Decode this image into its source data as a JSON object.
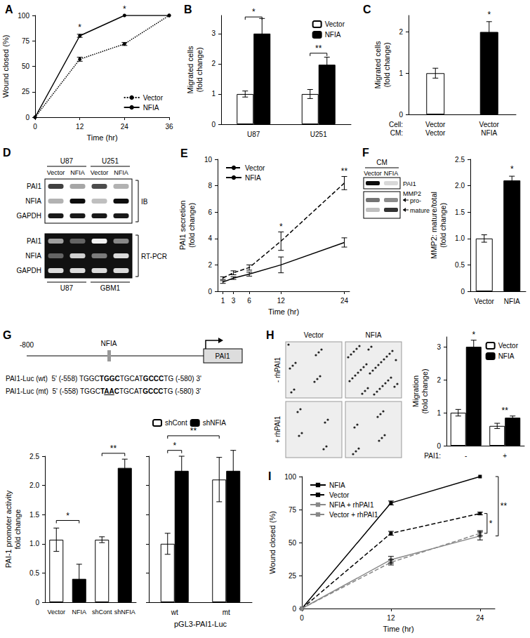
{
  "chart_data": [
    {
      "panel": "A",
      "type": "line",
      "x_label": "Time (hr)",
      "y_label": "Wound closed (%)",
      "x": [
        0,
        12,
        24,
        36
      ],
      "xlim": [
        0,
        36
      ],
      "xticks": [
        0,
        12,
        24,
        36
      ],
      "ylim": [
        0,
        100
      ],
      "yticks": [
        0,
        25,
        50,
        75,
        100
      ],
      "grid": false,
      "legend": "lower right",
      "series": [
        {
          "name": "Vector",
          "color": "#000000",
          "line_style": "dotted",
          "marker": "circle",
          "values": [
            0,
            57,
            72,
            100
          ],
          "error": [
            0,
            2,
            1.5,
            0
          ]
        },
        {
          "name": "NFIA",
          "color": "#000000",
          "line_style": "solid",
          "marker": "circle",
          "values": [
            0,
            80,
            100,
            100
          ],
          "error": [
            0,
            1.5,
            0,
            0
          ]
        }
      ],
      "annotations": [
        {
          "x": 12,
          "y": 84,
          "text": "*"
        },
        {
          "x": 24,
          "y": 102,
          "text": "*"
        }
      ]
    },
    {
      "panel": "B",
      "type": "bar",
      "y_label": "Migrated cells\n(fold change)",
      "categories": [
        "U87",
        "U251"
      ],
      "ylim": [
        0,
        3.6
      ],
      "yticks": [
        0,
        1,
        2,
        3
      ],
      "grid": false,
      "legend": "upper right",
      "series": [
        {
          "name": "Vector",
          "color": "#ffffff",
          "values": [
            1,
            1
          ],
          "error": [
            0.1,
            0.15
          ]
        },
        {
          "name": "NFIA",
          "color": "#000000",
          "values": [
            3,
            1.97
          ],
          "error": [
            0.5,
            0.25
          ]
        }
      ],
      "annotations": [
        {
          "from": [
            "U87",
            "Vector"
          ],
          "to": [
            "U87",
            "NFIA"
          ],
          "y": 3.55,
          "text": "*"
        },
        {
          "from": [
            "U251",
            "Vector"
          ],
          "to": [
            "U251",
            "NFIA"
          ],
          "y": 2.35,
          "text": "**"
        }
      ]
    },
    {
      "panel": "C",
      "type": "bar",
      "y_label": "Migrated cells\n(fold change)",
      "categories": [
        "Vector\nVector",
        "Vector\nNFIA"
      ],
      "category_rows": [
        "Cell:",
        "CM:"
      ],
      "ylim": [
        0,
        2.4
      ],
      "yticks": [
        0,
        1,
        2
      ],
      "grid": false,
      "values": [
        1,
        2
      ],
      "error": [
        0.12,
        0.25
      ],
      "colors": [
        "#ffffff",
        "#000000"
      ],
      "annotations": [
        {
          "x": [
            "Vector\nNFIA"
          ],
          "y": 2.3,
          "text": "*"
        }
      ]
    },
    {
      "panel": "E",
      "type": "line",
      "x_label": "Time (hr)",
      "y_label": "PAI1 secretion\n(fold change)",
      "x": [
        1,
        3,
        6,
        12,
        24
      ],
      "xlim": [
        0,
        25
      ],
      "xticks": [
        1,
        3,
        6,
        12,
        24
      ],
      "ylim": [
        0,
        10
      ],
      "yticks": [
        0,
        2,
        4,
        6,
        8,
        10
      ],
      "grid": false,
      "legend": "upper left",
      "series": [
        {
          "name": "Vector",
          "color": "#000000",
          "line_style": "dashed",
          "marker": "none",
          "values": [
            1,
            1.4,
            1.8,
            3.8,
            8.2
          ],
          "error": [
            0.1,
            0.15,
            0.2,
            0.7,
            0.5
          ]
        },
        {
          "name": "NFIA",
          "color": "#000000",
          "line_style": "solid",
          "marker": "none",
          "values": [
            0.7,
            1,
            1.3,
            2,
            3.7
          ],
          "error": [
            0.1,
            0.1,
            0.15,
            0.6,
            0.35
          ]
        }
      ],
      "annotations": [
        {
          "x": 12,
          "y": 4.6,
          "text": "*"
        },
        {
          "x": 24,
          "y": 8.8,
          "text": "**"
        }
      ]
    },
    {
      "type": "bar",
      "y_label": "MMP2: mature/total\n(fold change)",
      "categories": [
        "Vector",
        "NFIA"
      ],
      "ylim": [
        0,
        2.5
      ],
      "yticks": [
        0,
        0.5,
        {
          "value": 1,
          "label": "1.0"
        },
        1.5,
        {
          "value": 2,
          "label": "2.0"
        },
        2.5
      ],
      "grid": false,
      "values": [
        1,
        2.1
      ],
      "error": [
        0.07,
        0.08
      ],
      "colors": [
        "#ffffff",
        "#000000"
      ],
      "annotations": [
        {
          "x": [
            "NFIA"
          ],
          "y": 2.22,
          "text": "*"
        }
      ]
    },
    {
      "type": "bar",
      "y_label": "PAI-1 promoter activity\nfold change",
      "categories": [
        "Vector",
        "NFIA",
        "shCont",
        "shNFIA"
      ],
      "ylim": [
        0,
        2.5
      ],
      "yticks": [
        0,
        0.5,
        {
          "value": 1,
          "label": "1.0"
        },
        1.5,
        {
          "value": 2,
          "label": "2.0"
        },
        2.5
      ],
      "grid": false,
      "values": [
        1.07,
        0.4,
        1.07,
        2.3
      ],
      "error": [
        0.2,
        0.25,
        0.05,
        0.15
      ],
      "colors": [
        "#ffffff",
        "#000000",
        "#ffffff",
        "#000000"
      ],
      "annotations": [
        {
          "from": [
            "Vector"
          ],
          "to": [
            "NFIA"
          ],
          "y": 1.4,
          "text": "*"
        },
        {
          "from": [
            "shCont"
          ],
          "to": [
            "shNFIA"
          ],
          "y": 2.55,
          "text": "**"
        }
      ]
    },
    {
      "type": "bar",
      "x_label": "pGL3-PAI1-Luc",
      "categories": [
        "wt",
        "mt"
      ],
      "ylim": [
        0,
        2.5
      ],
      "yticks": [
        0,
        0.5,
        {
          "value": 1,
          "label": "1.0"
        },
        1.5,
        {
          "value": 2,
          "label": "2.0"
        },
        2.5
      ],
      "tick_labels": "x",
      "grid": false,
      "legend": "upper left",
      "series": [
        {
          "name": "shCont",
          "color": "#ffffff",
          "values": [
            1,
            2.1
          ],
          "error": [
            0.18,
            0.38
          ]
        },
        {
          "name": "shNFIA",
          "color": "#000000",
          "values": [
            2.25,
            2.25
          ],
          "error": [
            0.25,
            0.35
          ]
        }
      ],
      "annotations": [
        {
          "from": [
            "wt",
            "shCont"
          ],
          "to": [
            "wt",
            "shNFIA"
          ],
          "y": 2.6,
          "text": "*"
        },
        {
          "from": [
            "wt",
            "shCont"
          ],
          "to": [
            "mt",
            "shCont"
          ],
          "y": 2.85,
          "text": "**"
        }
      ]
    },
    {
      "type": "bar",
      "y_label": "Migration\n(fold change)",
      "categories": [
        "-",
        "+"
      ],
      "category_rows": [
        "PAI1:"
      ],
      "ylim": [
        0,
        3.3
      ],
      "yticks": [
        0,
        1,
        2,
        3
      ],
      "grid": false,
      "legend": "upper right",
      "series": [
        {
          "name": "Vector",
          "color": "#ffffff",
          "values": [
            1,
            0.6
          ],
          "error": [
            0.1,
            0.08
          ]
        },
        {
          "name": "NFIA",
          "color": "#000000",
          "values": [
            3,
            0.85
          ],
          "error": [
            0.2,
            0.05
          ]
        }
      ],
      "annotations": [
        {
          "x": [
            "-",
            "NFIA"
          ],
          "y": 3.22,
          "text": "*"
        },
        {
          "x": [
            "+"
          ],
          "y": 0.92,
          "text": "**"
        }
      ]
    },
    {
      "panel": "I",
      "type": "line",
      "x_label": "Time (hr)",
      "y_label": "Wound closed (%)",
      "x": [
        0,
        12,
        24
      ],
      "xlim": [
        0,
        26
      ],
      "xticks": [
        0,
        12,
        24
      ],
      "ylim": [
        0,
        100
      ],
      "yticks": [
        0,
        25,
        50,
        75,
        100
      ],
      "grid": false,
      "legend": "upper left",
      "series": [
        {
          "name": "NFIA",
          "color": "#000000",
          "line_style": "solid",
          "marker": "square",
          "values": [
            0,
            80,
            100
          ],
          "error": [
            0,
            1.5,
            0
          ]
        },
        {
          "name": "Vector",
          "color": "#000000",
          "line_style": "dashed",
          "marker": "square",
          "values": [
            0,
            57,
            72
          ],
          "error": [
            0,
            1.5,
            1
          ]
        },
        {
          "name": "NFIA + rhPAI1",
          "color": "#888888",
          "line_style": "solid",
          "marker": "square",
          "values": [
            0,
            37,
            55
          ],
          "error": [
            0,
            2.5,
            3
          ]
        },
        {
          "name": "Vector + rhPAI1",
          "color": "#888888",
          "line_style": "dashed",
          "marker": "square",
          "values": [
            0,
            35,
            57
          ],
          "error": [
            0,
            2,
            2
          ]
        }
      ],
      "annotations": [
        {
          "x": 24,
          "y_range": [
            57,
            72
          ],
          "text": "*"
        },
        {
          "x": 24,
          "y_range": [
            55,
            100
          ],
          "text": "**"
        }
      ]
    }
  ],
  "blot_D": {
    "panel": "D",
    "groups": [
      "U87",
      "U251"
    ],
    "lanes": [
      "Vector",
      "NFIA",
      "Vector",
      "NFIA"
    ],
    "method": "IB",
    "rows": [
      {
        "name": "PAI1",
        "bands": [
          0.75,
          0.35,
          0.7,
          0.3
        ]
      },
      {
        "name": "NFIA",
        "bands": [
          0.3,
          0.95,
          0.25,
          0.95
        ]
      },
      {
        "name": "GAPDH",
        "bands": [
          0.9,
          0.9,
          0.9,
          0.9
        ]
      }
    ],
    "rt_pcr": {
      "method": "RT-PCR",
      "groups": [
        "U87",
        "GBM1"
      ],
      "rows": [
        {
          "name": "PAI1",
          "bands": [
            0.6,
            0.35,
            0.95,
            0.5
          ]
        },
        {
          "name": "NFIA",
          "bands": [
            0.35,
            0.8,
            0.45,
            0.85
          ]
        },
        {
          "name": "GAPDH",
          "bands": [
            0.85,
            0.85,
            0.85,
            0.85
          ]
        }
      ]
    }
  },
  "blot_F": {
    "panel": "F",
    "header": "CM",
    "lanes": [
      "Vector",
      "NFIA"
    ],
    "rows": [
      {
        "name": "PAI1",
        "bands": [
          0.95,
          0.15
        ]
      },
      {
        "name": "MMP2",
        "forms": [
          {
            "name": "pro-",
            "bands": [
              0.55,
              0.45
            ]
          },
          {
            "name": "mature",
            "bands": [
              0.25,
              0.8
            ]
          }
        ]
      }
    ]
  },
  "diagram_G": {
    "panel": "G",
    "start": "-800",
    "site": "NFIA",
    "gene": "PAI1",
    "constructs": [
      {
        "name": "PAI1-Luc (wt)",
        "prefix": "5' (-558)",
        "suffix": "(-580) 3'",
        "segments": [
          {
            "text": "TGGC"
          },
          {
            "text": "TGGC",
            "bold": true
          },
          {
            "text": "TGCAT"
          },
          {
            "text": "GCCC",
            "bold": true
          },
          {
            "text": "TG"
          }
        ]
      },
      {
        "name": "PAI1-Luc (mt)",
        "prefix": "5' (-558)",
        "suffix": "(-580) 3'",
        "segments": [
          {
            "text": "TGGC"
          },
          {
            "text": "T",
            "bold": true
          },
          {
            "text": "AA",
            "bold": true,
            "underline": true
          },
          {
            "text": "C",
            "bold": true
          },
          {
            "text": "TGCAT"
          },
          {
            "text": "GCCC",
            "bold": true
          },
          {
            "text": "TG"
          }
        ]
      }
    ]
  },
  "images_H": {
    "panel": "H",
    "columns": [
      "Vector",
      "NFIA"
    ],
    "rows": [
      "- rhPAI1",
      "+ rhPAI1"
    ]
  }
}
